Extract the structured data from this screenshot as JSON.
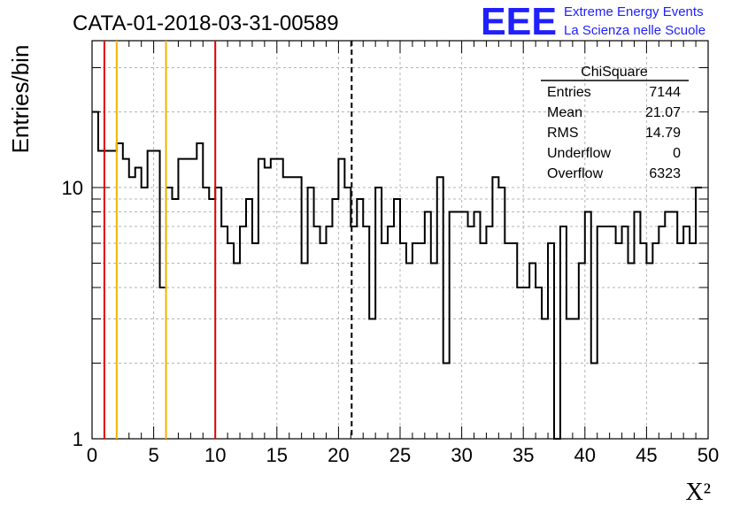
{
  "chart_data": {
    "type": "histogram",
    "title": "CATA-01-2018-03-31-00589",
    "xlabel": "X²",
    "ylabel": "Entries/bin",
    "xlim": [
      0,
      50
    ],
    "ylim": [
      1,
      35
    ],
    "y_scale": "log",
    "grid": true,
    "bin_width": 0.5,
    "bin_counts": [
      20,
      14,
      14,
      14,
      15,
      13,
      11,
      12,
      10,
      14,
      14,
      4,
      10,
      9,
      13,
      13,
      13,
      15,
      10,
      9,
      10,
      7,
      6,
      5,
      7,
      9,
      6,
      13,
      12,
      13,
      13,
      11,
      11,
      11,
      5,
      10,
      7,
      6,
      7,
      9,
      13,
      10,
      7,
      9,
      7,
      3,
      10,
      6,
      7,
      9,
      6,
      5,
      6,
      6,
      8,
      5,
      11,
      2,
      8,
      8,
      8,
      7,
      8,
      6,
      7,
      11,
      10,
      6,
      6,
      4,
      4,
      5,
      4,
      3,
      6,
      1,
      7,
      3,
      3,
      5,
      8,
      2,
      7,
      7,
      7,
      6,
      7,
      5,
      8,
      6,
      5,
      6,
      7,
      8,
      8,
      6,
      7,
      6,
      10
    ],
    "x_ticks": [
      "0",
      "5",
      "10",
      "15",
      "20",
      "25",
      "30",
      "35",
      "40",
      "45",
      "50"
    ],
    "y_ticks": [
      "1",
      "10"
    ],
    "vertical_lines": [
      {
        "x": 1,
        "color": "#e00000",
        "style": "solid"
      },
      {
        "x": 2,
        "color": "#f0b400",
        "style": "solid"
      },
      {
        "x": 6,
        "color": "#f0b400",
        "style": "solid"
      },
      {
        "x": 10,
        "color": "#e00000",
        "style": "solid"
      },
      {
        "x": 21.07,
        "color": "#000000",
        "style": "dashed"
      }
    ],
    "stats_box": {
      "title": "ChiSquare",
      "rows": [
        {
          "label": "Entries",
          "value": "7144"
        },
        {
          "label": "Mean",
          "value": "21.07"
        },
        {
          "label": "RMS",
          "value": "14.79"
        },
        {
          "label": "Underflow",
          "value": "0"
        },
        {
          "label": "Overflow",
          "value": "6323"
        }
      ]
    }
  },
  "logo": {
    "mark": "EEE",
    "line1": "Extreme Energy Events",
    "line2": "La Scienza nelle Scuole",
    "color": "#1f1fff"
  }
}
